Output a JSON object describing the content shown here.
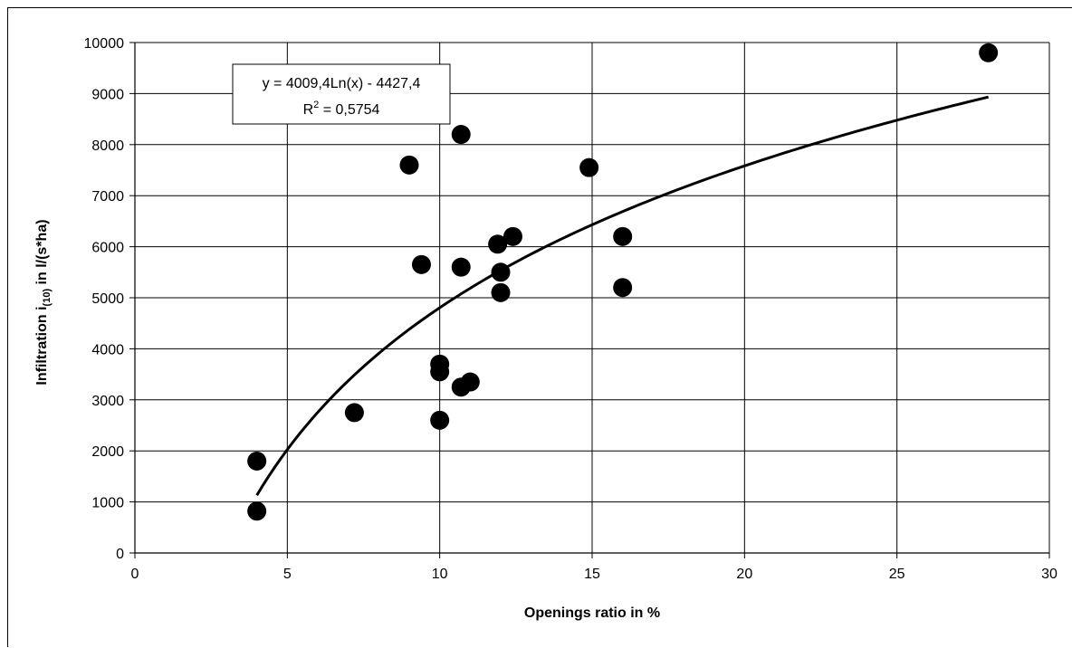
{
  "chart_data": {
    "type": "scatter",
    "title": "",
    "xlabel": "Openings ratio in %",
    "ylabel": {
      "prefix": "Infiltration i",
      "subscript": "(10)",
      "suffix": " in l/(s*ha)"
    },
    "xlim": [
      0,
      30
    ],
    "ylim": [
      0,
      10000
    ],
    "x_ticks": [
      0,
      5,
      10,
      15,
      20,
      25,
      30
    ],
    "y_ticks": [
      0,
      1000,
      2000,
      3000,
      4000,
      5000,
      6000,
      7000,
      8000,
      9000,
      10000
    ],
    "grid": true,
    "legend": "none",
    "series": [
      {
        "marker": "circle",
        "color": "#000000",
        "points": [
          {
            "x": 4.0,
            "y": 1800
          },
          {
            "x": 4.0,
            "y": 820
          },
          {
            "x": 7.2,
            "y": 2750
          },
          {
            "x": 9.0,
            "y": 7600
          },
          {
            "x": 9.4,
            "y": 5650
          },
          {
            "x": 10.0,
            "y": 3700
          },
          {
            "x": 10.0,
            "y": 3550
          },
          {
            "x": 10.0,
            "y": 2600
          },
          {
            "x": 10.7,
            "y": 8200
          },
          {
            "x": 10.7,
            "y": 5600
          },
          {
            "x": 10.7,
            "y": 3250
          },
          {
            "x": 11.0,
            "y": 3350
          },
          {
            "x": 11.9,
            "y": 6050
          },
          {
            "x": 12.0,
            "y": 5500
          },
          {
            "x": 12.0,
            "y": 5100
          },
          {
            "x": 12.4,
            "y": 6200
          },
          {
            "x": 14.9,
            "y": 7550
          },
          {
            "x": 16.0,
            "y": 6200
          },
          {
            "x": 16.0,
            "y": 5200
          },
          {
            "x": 28.0,
            "y": 9800
          }
        ]
      }
    ],
    "trendline": {
      "type": "logarithmic",
      "a": 4009.4,
      "b": -4427.4,
      "x_range": [
        4,
        28
      ],
      "equation_label": "y = 4009,4Ln(x) - 4427,4",
      "r2_label_prefix": "R",
      "r2_label_sup": "2",
      "r2_label_value": " = 0,5754"
    }
  }
}
